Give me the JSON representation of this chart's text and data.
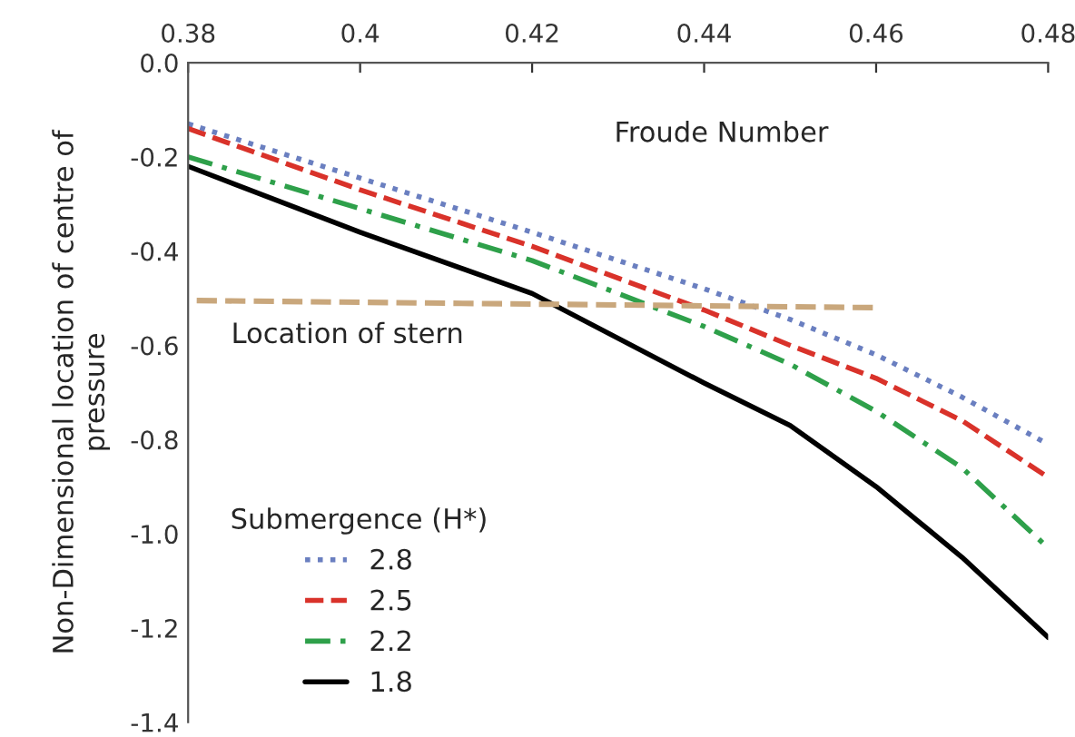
{
  "chart_data": {
    "type": "line",
    "xlabel": "Froude Number",
    "ylabel": "Non-Dimensional location of centre of\npressure",
    "legend_title": "Submergence (H*)",
    "legend": "bottom left",
    "grid": false,
    "xlim": [
      0.38,
      0.48
    ],
    "xticks": [
      0.38,
      0.4,
      0.42,
      0.44,
      0.46,
      0.48
    ],
    "ylim": [
      -1.4,
      0.0
    ],
    "yticks": [
      {
        "value": 0.0,
        "label": "0.0"
      },
      -0.2,
      -0.4,
      -0.6,
      -0.8,
      {
        "value": -1.0,
        "label": "-1.0"
      },
      -1.2,
      -1.4
    ],
    "x": [
      0.38,
      0.4,
      0.42,
      0.44,
      0.45,
      0.46,
      0.47,
      0.48
    ],
    "series": [
      {
        "name": "2.8",
        "color": "#6a7fc0",
        "line_style": "dotted",
        "values": [
          -0.13,
          -0.245,
          -0.36,
          -0.48,
          -0.545,
          -0.62,
          -0.71,
          -0.81
        ]
      },
      {
        "name": "2.5",
        "color": "#d9322a",
        "line_style": "dashed",
        "values": [
          -0.14,
          -0.27,
          -0.39,
          -0.525,
          -0.6,
          -0.67,
          -0.76,
          -0.88
        ]
      },
      {
        "name": "2.2",
        "color": "#2ea04a",
        "line_style": "dashdot",
        "values": [
          -0.2,
          -0.31,
          -0.42,
          -0.56,
          -0.64,
          -0.74,
          -0.86,
          -1.03
        ]
      },
      {
        "name": "1.8",
        "color": "#000000",
        "line_style": "solid",
        "values": [
          -0.22,
          -0.36,
          -0.49,
          -0.68,
          -0.77,
          -0.9,
          -1.05,
          -1.22
        ]
      },
      {
        "color": "#c9a77c",
        "line_style": "dashed",
        "x": [
          0.381,
          0.46
        ],
        "values": [
          -0.505,
          -0.52
        ]
      }
    ],
    "annotations": [
      "Location of stern"
    ]
  }
}
